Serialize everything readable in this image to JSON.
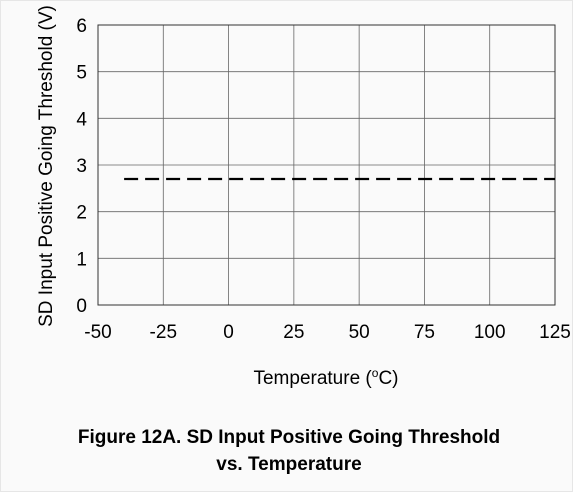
{
  "chart_data": {
    "type": "line",
    "title": "",
    "xlabel": "Temperature (°C)",
    "xlabel_parts": [
      "Temperature (",
      "o",
      "C)"
    ],
    "ylabel": "SD Input Positive Going Threshold (V)",
    "xlim": [
      -50,
      125
    ],
    "ylim": [
      0,
      6
    ],
    "x_ticks": [
      -50,
      -25,
      0,
      25,
      50,
      75,
      100,
      125
    ],
    "y_ticks": [
      0,
      1,
      2,
      3,
      4,
      5,
      6
    ],
    "grid": true,
    "series": [
      {
        "style": "dashed",
        "color": "#000000",
        "x": [
          -40,
          125
        ],
        "y": [
          2.7,
          2.7
        ]
      }
    ]
  },
  "caption": {
    "line1": "Figure 12A. SD Input Positive Going Threshold",
    "line2": "vs. Temperature"
  }
}
